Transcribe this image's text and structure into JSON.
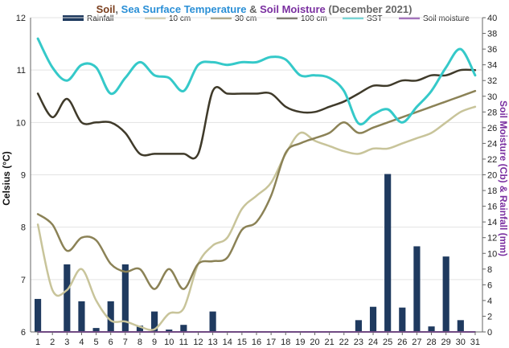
{
  "colors": {
    "soil": "#7b3f1e",
    "sst_title": "#2a8fd6",
    "soil_moisture_title": "#7a2fa0",
    "rainfall": "#1f3a5f",
    "cm10": "#c8c49a",
    "cm30": "#8b8256",
    "cm100": "#3f3a2a",
    "sst": "#35c9c9",
    "moisture": "#7a2fa0",
    "grid": "#e3e3e3",
    "axis": "#666666"
  },
  "chart_data": {
    "type": "line",
    "title_parts": [
      {
        "text": "Soil",
        "color_key": "soil"
      },
      {
        "text": ", ",
        "color_key": "axis"
      },
      {
        "text": "Sea Surface Temperature",
        "color_key": "sst_title"
      },
      {
        "text": " & ",
        "color_key": "axis"
      },
      {
        "text": "Soil Moisture",
        "color_key": "soil_moisture_title"
      },
      {
        "text": " (December 2021)",
        "color_key": "axis"
      }
    ],
    "ylabel": "Celsius (°C)",
    "y2label": "Soil Moisture (Cb) & Rainfall (mm)",
    "ylim": [
      6,
      12
    ],
    "y2lim": [
      0,
      40
    ],
    "yticks": [
      6,
      7,
      8,
      9,
      10,
      11,
      12
    ],
    "y2ticks": [
      0,
      2,
      4,
      6,
      8,
      10,
      12,
      14,
      16,
      18,
      20,
      22,
      24,
      26,
      28,
      30,
      32,
      34,
      36,
      38,
      40
    ],
    "x": [
      1,
      2,
      3,
      4,
      5,
      6,
      7,
      8,
      9,
      10,
      11,
      12,
      13,
      14,
      15,
      16,
      17,
      18,
      19,
      20,
      21,
      22,
      23,
      24,
      25,
      26,
      27,
      28,
      29,
      30,
      31
    ],
    "xticks": [
      "1",
      "2",
      "3",
      "4",
      "5",
      "6",
      "7",
      "8",
      "9",
      "10",
      "11",
      "12",
      "13",
      "14",
      "15",
      "16",
      "17",
      "18",
      "19",
      "20",
      "21",
      "22",
      "23",
      "24",
      "25",
      "26",
      "27",
      "28",
      "29",
      "30",
      "31"
    ],
    "legend": [
      {
        "name": "Rainfall",
        "kind": "bar",
        "color_key": "rainfall"
      },
      {
        "name": "10 cm",
        "kind": "line",
        "color_key": "cm10"
      },
      {
        "name": "30 cm",
        "kind": "line",
        "color_key": "cm30"
      },
      {
        "name": "100 cm",
        "kind": "line",
        "color_key": "cm100"
      },
      {
        "name": "SST",
        "kind": "line",
        "color_key": "sst"
      },
      {
        "name": "Soil moisture",
        "kind": "line",
        "color_key": "moisture"
      }
    ],
    "series": [
      {
        "name": "Rainfall",
        "axis": "right",
        "type": "bar",
        "color_key": "rainfall",
        "values": [
          4.2,
          0,
          8.6,
          3.9,
          0.5,
          3.9,
          8.6,
          0.8,
          2.6,
          0.3,
          0.9,
          0,
          2.6,
          0,
          0,
          0,
          0,
          0,
          0,
          0,
          0,
          0,
          1.5,
          3.2,
          20.1,
          3.1,
          10.9,
          0.7,
          9.6,
          1.5,
          0
        ]
      },
      {
        "name": "10 cm",
        "axis": "left",
        "type": "line",
        "color_key": "cm10",
        "values": [
          8.05,
          6.8,
          6.8,
          7.2,
          6.6,
          6.22,
          6.2,
          6.1,
          6.05,
          6.35,
          6.45,
          7.3,
          7.65,
          7.8,
          8.35,
          8.6,
          8.85,
          9.4,
          9.8,
          9.65,
          9.55,
          9.45,
          9.4,
          9.5,
          9.5,
          9.6,
          9.7,
          9.8,
          10.0,
          10.2,
          10.3
        ]
      },
      {
        "name": "30 cm",
        "axis": "left",
        "type": "line",
        "color_key": "cm30",
        "values": [
          8.25,
          8.05,
          7.55,
          7.8,
          7.75,
          7.3,
          7.15,
          7.2,
          6.82,
          7.2,
          6.82,
          7.3,
          7.35,
          7.42,
          7.95,
          8.1,
          8.6,
          9.42,
          9.6,
          9.7,
          9.8,
          10.0,
          9.8,
          9.9,
          10.0,
          10.1,
          10.2,
          10.3,
          10.4,
          10.5,
          10.6
        ]
      },
      {
        "name": "100 cm",
        "axis": "left",
        "type": "line",
        "color_key": "cm100",
        "values": [
          10.55,
          10.1,
          10.45,
          10.0,
          10.0,
          10.0,
          9.8,
          9.4,
          9.4,
          9.4,
          9.4,
          9.4,
          10.6,
          10.55,
          10.55,
          10.55,
          10.55,
          10.3,
          10.2,
          10.2,
          10.3,
          10.4,
          10.55,
          10.7,
          10.7,
          10.8,
          10.8,
          10.9,
          10.9,
          11.0,
          11.0
        ]
      },
      {
        "name": "SST",
        "axis": "left",
        "type": "line",
        "color_key": "sst",
        "values": [
          11.6,
          11.05,
          10.8,
          11.1,
          11.05,
          10.55,
          10.85,
          11.15,
          10.9,
          10.85,
          10.6,
          11.1,
          11.15,
          11.1,
          11.15,
          11.15,
          11.25,
          11.2,
          10.9,
          10.9,
          10.85,
          10.6,
          9.98,
          10.15,
          10.25,
          10.0,
          10.3,
          10.6,
          11.05,
          11.4,
          10.9
        ]
      },
      {
        "name": "Soil moisture",
        "axis": "right",
        "type": "line",
        "color_key": "moisture",
        "values": [
          0,
          0,
          0,
          0,
          0,
          0,
          0,
          0,
          0,
          0,
          0,
          0,
          0,
          0,
          0,
          0,
          0,
          0,
          0,
          0,
          0,
          0,
          0,
          0,
          0,
          0,
          0,
          0,
          0,
          0,
          0
        ]
      }
    ]
  }
}
